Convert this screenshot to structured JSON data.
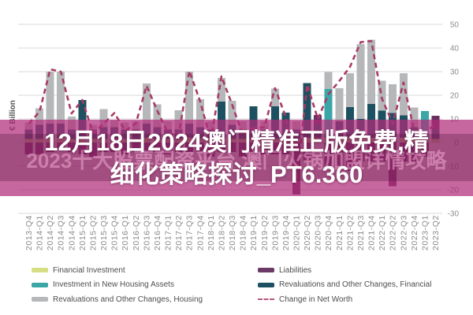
{
  "chart_data": {
    "type": "combo-stacked-bar-line",
    "ylabel": "€ Billion",
    "y_axis": {
      "side": "right",
      "min": -30,
      "max": 50,
      "tick_step": 10,
      "tick_labels": [
        "50",
        "40",
        "30",
        "20",
        "10",
        "0",
        "-10",
        "-20",
        "-30"
      ]
    },
    "grid": true,
    "categories": [
      "2013-Q4",
      "2014-Q1",
      "2014-Q2",
      "2014-Q3",
      "2014-Q4",
      "2015-Q1",
      "2015-Q2",
      "2015-Q3",
      "2015-Q4",
      "2016-Q1",
      "2016-Q2",
      "2016-Q3",
      "2016-Q4",
      "2017-Q1",
      "2017-Q2",
      "2017-Q3",
      "2017-Q4",
      "2018-Q1",
      "2018-Q2",
      "2018-Q3",
      "2018-Q4",
      "2019-Q1",
      "2019-Q2",
      "2019-Q3",
      "2019-Q4",
      "2020-Q1",
      "2020-Q2",
      "2020-Q3",
      "2020-Q4",
      "2021-Q1",
      "2021-Q2",
      "2021-Q3",
      "2021-Q4",
      "2022-Q1",
      "2022-Q2",
      "2022-Q3",
      "2022-Q4",
      "2023-Q1",
      "2023-Q2"
    ],
    "bar_series": [
      {
        "name": "Financial Investment",
        "color": "#d5de83",
        "values": [
          1.5,
          1.5,
          2,
          2,
          1.5,
          2,
          1.5,
          1.5,
          1.5,
          1.5,
          1.5,
          2,
          1.5,
          1.5,
          1.5,
          2,
          1.5,
          1.5,
          2,
          1.5,
          1.5,
          1.5,
          1.5,
          1.5,
          1.5,
          1.5,
          2,
          2,
          2,
          2,
          2,
          2,
          2,
          2,
          2,
          2,
          1.5,
          1.5,
          1.5
        ]
      },
      {
        "name": "Revaluations and Other Changes, Financial",
        "color": "#1d5060",
        "values": [
          4,
          6,
          6,
          6,
          4,
          16,
          4,
          5,
          5,
          4,
          4,
          6,
          5,
          4,
          4,
          6,
          5,
          4,
          15.3,
          6,
          4,
          13.9,
          4,
          13.9,
          11.1,
          4,
          23.2,
          6,
          0,
          7,
          13,
          8,
          14.3,
          11.5,
          10.5,
          9.5,
          5,
          0,
          4
        ]
      },
      {
        "name": "Investment in New Housing Assets",
        "color": "#3aa6a6",
        "values": [
          0,
          0,
          0,
          0,
          0,
          0,
          0,
          0,
          0,
          0,
          0,
          0,
          0,
          0,
          0,
          0,
          0,
          0,
          0,
          0,
          0,
          0,
          0,
          0,
          0,
          0,
          0,
          0,
          20.6,
          0,
          0,
          0,
          0,
          0,
          0,
          0,
          0,
          11.8,
          0
        ]
      },
      {
        "name": "Revaluations and Other Changes, Housing",
        "color": "#b5b7b9",
        "values": [
          3,
          7,
          22,
          22,
          5.5,
          0,
          2,
          7.7,
          3,
          3,
          3.5,
          17,
          9.7,
          3.5,
          8.2,
          22,
          11.8,
          3.5,
          10,
          10.2,
          3.5,
          0,
          3.5,
          7.5,
          0,
          3.5,
          0,
          0,
          7.2,
          14,
          14.3,
          31.7,
          27.2,
          12.7,
          12.1,
          17.9,
          8.4,
          0,
          0
        ]
      },
      {
        "name": "Liabilities",
        "color": "#683162",
        "values": [
          -5,
          -5,
          -4,
          -3,
          -4,
          -5,
          -6,
          -4,
          -4,
          -5,
          -4,
          -4,
          -4,
          -5,
          -4,
          -4,
          -4,
          -6,
          -4,
          -4,
          -6,
          -5,
          -5,
          -5,
          -5,
          -22,
          -8,
          3.6,
          -10,
          -10,
          -12,
          -8,
          -8,
          -8,
          -18.5,
          -8,
          -8,
          -6,
          5.8
        ]
      }
    ],
    "line_series": {
      "name": "Change in Net Worth",
      "color": "#a73b66",
      "style": "dashed",
      "values": [
        8,
        13,
        31,
        30,
        12.3,
        18,
        4,
        8,
        12.5,
        5,
        8,
        24,
        13.5,
        4,
        3,
        30.3,
        17.5,
        1,
        28,
        16,
        3,
        6,
        6.5,
        23,
        11,
        -17,
        24.5,
        10,
        20.5,
        26,
        32,
        42.5,
        43,
        18.5,
        8,
        25.4,
        5,
        4,
        8
      ]
    },
    "legend_position": "bottom"
  },
  "overlay": {
    "band_color": "rgba(178,45,122,0.72)",
    "stripe_color": "rgba(70,15,55,0.28)",
    "headline_line1": "12月18日2024澳门精准正版免费,精",
    "headline_line2": "细化策略探讨_PT6.360",
    "headline_color": "#ffffff",
    "watermark_text": "2023十大股票配资平台 澳门火锅加盟详情攻略",
    "watermark_color": "rgba(240,168,208,0.55)"
  },
  "legend": {
    "items": [
      {
        "label": "Financial Investment",
        "swatch": "bar",
        "color": "#d5de83"
      },
      {
        "label": "Investment in New Housing Assets",
        "swatch": "bar",
        "color": "#3aa6a6"
      },
      {
        "label": "Revaluations and Other Changes, Housing",
        "swatch": "bar",
        "color": "#b5b7b9"
      },
      {
        "label": "Liabilities",
        "swatch": "bar",
        "color": "#6b3a66"
      },
      {
        "label": "Revaluations and Other Changes, Financial",
        "swatch": "bar",
        "color": "#1d5060"
      },
      {
        "label": "Change in Net Worth",
        "swatch": "dashed-line",
        "color": "#b4577f"
      }
    ]
  }
}
